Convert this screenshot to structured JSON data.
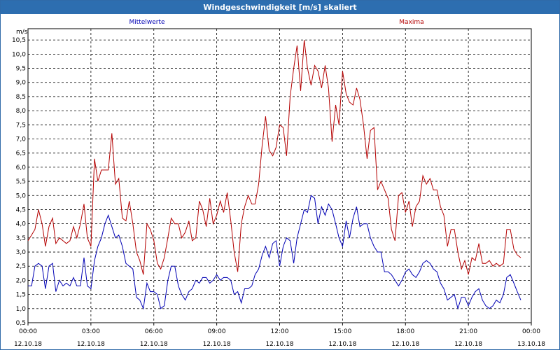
{
  "window": {
    "title": "Windgeschwindigkeit [m/s] skaliert"
  },
  "chart_data": {
    "type": "line",
    "ylabel": "m/s",
    "ylim": [
      0.5,
      10.9
    ],
    "yticks": [
      "0,5",
      "1,0",
      "1,5",
      "2,0",
      "2,5",
      "3,0",
      "3,5",
      "4,0",
      "4,5",
      "5,0",
      "5,5",
      "6,0",
      "6,5",
      "7,0",
      "7,5",
      "8,0",
      "8,5",
      "9,0",
      "9,5",
      "10,0",
      "10,5"
    ],
    "xticks": [
      {
        "time": "00:00",
        "date": "12.10.18"
      },
      {
        "time": "03:00",
        "date": "12.10.18"
      },
      {
        "time": "06:00",
        "date": "12.10.18"
      },
      {
        "time": "09:00",
        "date": "12.10.18"
      },
      {
        "time": "12:00",
        "date": "12.10.18"
      },
      {
        "time": "15:00",
        "date": "12.10.18"
      },
      {
        "time": "18:00",
        "date": "12.10.18"
      },
      {
        "time": "21:00",
        "date": "12.10.18"
      },
      {
        "time": "00:00",
        "date": "13.10.18"
      }
    ],
    "grid": true,
    "series": [
      {
        "name": "Mittelwerte",
        "color": "#0000b4",
        "points": [
          [
            0.0,
            1.8
          ],
          [
            0.17,
            1.8
          ],
          [
            0.33,
            2.5
          ],
          [
            0.5,
            2.6
          ],
          [
            0.67,
            2.5
          ],
          [
            0.83,
            1.7
          ],
          [
            1.0,
            2.5
          ],
          [
            1.17,
            2.6
          ],
          [
            1.33,
            1.6
          ],
          [
            1.5,
            2.0
          ],
          [
            1.67,
            1.8
          ],
          [
            1.83,
            1.9
          ],
          [
            2.0,
            1.8
          ],
          [
            2.17,
            2.1
          ],
          [
            2.33,
            1.8
          ],
          [
            2.5,
            1.8
          ],
          [
            2.67,
            2.8
          ],
          [
            2.83,
            1.8
          ],
          [
            3.0,
            1.7
          ],
          [
            3.17,
            2.7
          ],
          [
            3.33,
            3.2
          ],
          [
            3.5,
            3.5
          ],
          [
            3.67,
            4.0
          ],
          [
            3.83,
            4.3
          ],
          [
            4.0,
            3.9
          ],
          [
            4.17,
            3.5
          ],
          [
            4.33,
            3.6
          ],
          [
            4.5,
            3.2
          ],
          [
            4.67,
            2.6
          ],
          [
            4.83,
            2.5
          ],
          [
            5.0,
            2.4
          ],
          [
            5.17,
            1.4
          ],
          [
            5.33,
            1.3
          ],
          [
            5.5,
            1.0
          ],
          [
            5.67,
            1.9
          ],
          [
            5.83,
            1.6
          ],
          [
            6.0,
            1.6
          ],
          [
            6.17,
            1.5
          ],
          [
            6.33,
            1.0
          ],
          [
            6.5,
            1.1
          ],
          [
            6.67,
            2.0
          ],
          [
            6.83,
            2.5
          ],
          [
            7.0,
            2.5
          ],
          [
            7.17,
            1.8
          ],
          [
            7.33,
            1.5
          ],
          [
            7.5,
            1.3
          ],
          [
            7.67,
            1.6
          ],
          [
            7.83,
            1.7
          ],
          [
            8.0,
            2.0
          ],
          [
            8.17,
            1.9
          ],
          [
            8.33,
            2.1
          ],
          [
            8.5,
            2.1
          ],
          [
            8.67,
            1.9
          ],
          [
            8.83,
            2.0
          ],
          [
            9.0,
            2.2
          ],
          [
            9.17,
            2.0
          ],
          [
            9.33,
            2.1
          ],
          [
            9.5,
            2.1
          ],
          [
            9.67,
            2.0
          ],
          [
            9.83,
            1.5
          ],
          [
            10.0,
            1.6
          ],
          [
            10.17,
            1.2
          ],
          [
            10.33,
            1.7
          ],
          [
            10.5,
            1.7
          ],
          [
            10.67,
            1.8
          ],
          [
            10.83,
            2.2
          ],
          [
            11.0,
            2.4
          ],
          [
            11.17,
            2.9
          ],
          [
            11.33,
            3.2
          ],
          [
            11.5,
            2.8
          ],
          [
            11.67,
            3.3
          ],
          [
            11.83,
            3.4
          ],
          [
            12.0,
            2.5
          ],
          [
            12.17,
            3.2
          ],
          [
            12.33,
            3.5
          ],
          [
            12.5,
            3.4
          ],
          [
            12.67,
            2.6
          ],
          [
            12.83,
            3.5
          ],
          [
            13.0,
            4.0
          ],
          [
            13.17,
            4.5
          ],
          [
            13.33,
            4.4
          ],
          [
            13.5,
            5.0
          ],
          [
            13.67,
            4.9
          ],
          [
            13.83,
            4.0
          ],
          [
            14.0,
            4.6
          ],
          [
            14.17,
            4.3
          ],
          [
            14.33,
            4.7
          ],
          [
            14.5,
            4.5
          ],
          [
            14.67,
            4.0
          ],
          [
            14.83,
            3.5
          ],
          [
            15.0,
            3.2
          ],
          [
            15.17,
            4.1
          ],
          [
            15.33,
            3.5
          ],
          [
            15.5,
            4.2
          ],
          [
            15.67,
            4.6
          ],
          [
            15.83,
            3.9
          ],
          [
            16.0,
            4.0
          ],
          [
            16.17,
            4.0
          ],
          [
            16.33,
            3.5
          ],
          [
            16.5,
            3.2
          ],
          [
            16.67,
            3.0
          ],
          [
            16.83,
            3.0
          ],
          [
            17.0,
            2.3
          ],
          [
            17.17,
            2.3
          ],
          [
            17.33,
            2.2
          ],
          [
            17.5,
            2.0
          ],
          [
            17.67,
            1.8
          ],
          [
            17.83,
            2.0
          ],
          [
            18.0,
            2.3
          ],
          [
            18.17,
            2.4
          ],
          [
            18.33,
            2.2
          ],
          [
            18.5,
            2.1
          ],
          [
            18.67,
            2.3
          ],
          [
            18.83,
            2.6
          ],
          [
            19.0,
            2.7
          ],
          [
            19.17,
            2.6
          ],
          [
            19.33,
            2.4
          ],
          [
            19.5,
            2.3
          ],
          [
            19.67,
            1.9
          ],
          [
            19.83,
            1.7
          ],
          [
            20.0,
            1.3
          ],
          [
            20.17,
            1.4
          ],
          [
            20.33,
            1.5
          ],
          [
            20.5,
            1.0
          ],
          [
            20.67,
            1.4
          ],
          [
            20.83,
            1.4
          ],
          [
            21.0,
            1.1
          ],
          [
            21.17,
            1.4
          ],
          [
            21.33,
            1.6
          ],
          [
            21.5,
            1.7
          ],
          [
            21.67,
            1.3
          ],
          [
            21.83,
            1.1
          ],
          [
            22.0,
            1.0
          ],
          [
            22.17,
            1.1
          ],
          [
            22.33,
            1.3
          ],
          [
            22.5,
            1.2
          ],
          [
            22.67,
            1.5
          ],
          [
            22.83,
            2.1
          ],
          [
            23.0,
            2.2
          ],
          [
            23.17,
            1.9
          ],
          [
            23.33,
            1.6
          ],
          [
            23.5,
            1.3
          ]
        ]
      },
      {
        "name": "Maxima",
        "color": "#b40000",
        "points": [
          [
            0.0,
            3.4
          ],
          [
            0.17,
            3.6
          ],
          [
            0.33,
            3.8
          ],
          [
            0.5,
            4.5
          ],
          [
            0.67,
            4.0
          ],
          [
            0.83,
            3.2
          ],
          [
            1.0,
            3.9
          ],
          [
            1.17,
            4.2
          ],
          [
            1.33,
            3.3
          ],
          [
            1.5,
            3.5
          ],
          [
            1.67,
            3.4
          ],
          [
            1.83,
            3.3
          ],
          [
            2.0,
            3.4
          ],
          [
            2.17,
            3.9
          ],
          [
            2.33,
            3.5
          ],
          [
            2.5,
            4.0
          ],
          [
            2.67,
            4.7
          ],
          [
            2.83,
            3.5
          ],
          [
            3.0,
            3.2
          ],
          [
            3.17,
            6.3
          ],
          [
            3.33,
            5.5
          ],
          [
            3.5,
            5.9
          ],
          [
            3.67,
            5.9
          ],
          [
            3.83,
            5.9
          ],
          [
            4.0,
            7.2
          ],
          [
            4.17,
            5.4
          ],
          [
            4.33,
            5.6
          ],
          [
            4.5,
            4.2
          ],
          [
            4.67,
            4.1
          ],
          [
            4.83,
            4.8
          ],
          [
            5.0,
            4.0
          ],
          [
            5.17,
            3.0
          ],
          [
            5.33,
            2.7
          ],
          [
            5.5,
            2.2
          ],
          [
            5.67,
            4.0
          ],
          [
            5.83,
            3.8
          ],
          [
            6.0,
            3.4
          ],
          [
            6.17,
            2.6
          ],
          [
            6.33,
            2.4
          ],
          [
            6.5,
            2.8
          ],
          [
            6.67,
            3.5
          ],
          [
            6.83,
            4.2
          ],
          [
            7.0,
            4.0
          ],
          [
            7.17,
            4.0
          ],
          [
            7.33,
            3.5
          ],
          [
            7.5,
            3.7
          ],
          [
            7.67,
            4.1
          ],
          [
            7.83,
            3.4
          ],
          [
            8.0,
            3.5
          ],
          [
            8.17,
            4.8
          ],
          [
            8.33,
            4.5
          ],
          [
            8.5,
            3.9
          ],
          [
            8.67,
            4.9
          ],
          [
            8.83,
            4.0
          ],
          [
            9.0,
            4.3
          ],
          [
            9.17,
            4.8
          ],
          [
            9.33,
            4.4
          ],
          [
            9.5,
            5.1
          ],
          [
            9.67,
            4.1
          ],
          [
            9.83,
            3.0
          ],
          [
            10.0,
            2.3
          ],
          [
            10.17,
            4.0
          ],
          [
            10.33,
            4.6
          ],
          [
            10.5,
            5.0
          ],
          [
            10.67,
            4.7
          ],
          [
            10.83,
            4.7
          ],
          [
            11.0,
            5.4
          ],
          [
            11.17,
            6.8
          ],
          [
            11.33,
            7.8
          ],
          [
            11.5,
            6.6
          ],
          [
            11.67,
            6.4
          ],
          [
            11.83,
            6.7
          ],
          [
            12.0,
            7.5
          ],
          [
            12.17,
            7.4
          ],
          [
            12.33,
            6.4
          ],
          [
            12.5,
            8.5
          ],
          [
            12.67,
            9.5
          ],
          [
            12.83,
            10.3
          ],
          [
            13.0,
            8.7
          ],
          [
            13.17,
            10.5
          ],
          [
            13.33,
            9.5
          ],
          [
            13.5,
            8.9
          ],
          [
            13.67,
            9.6
          ],
          [
            13.83,
            9.4
          ],
          [
            14.0,
            8.8
          ],
          [
            14.17,
            9.6
          ],
          [
            14.33,
            8.8
          ],
          [
            14.5,
            6.9
          ],
          [
            14.67,
            8.2
          ],
          [
            14.83,
            7.5
          ],
          [
            15.0,
            9.4
          ],
          [
            15.17,
            8.6
          ],
          [
            15.33,
            8.3
          ],
          [
            15.5,
            8.2
          ],
          [
            15.67,
            8.8
          ],
          [
            15.83,
            8.4
          ],
          [
            16.0,
            7.5
          ],
          [
            16.17,
            6.3
          ],
          [
            16.33,
            7.3
          ],
          [
            16.5,
            7.4
          ],
          [
            16.67,
            5.2
          ],
          [
            16.83,
            5.5
          ],
          [
            17.0,
            5.2
          ],
          [
            17.17,
            4.9
          ],
          [
            17.33,
            3.8
          ],
          [
            17.5,
            3.4
          ],
          [
            17.67,
            5.0
          ],
          [
            17.83,
            5.1
          ],
          [
            18.0,
            4.4
          ],
          [
            18.17,
            4.8
          ],
          [
            18.33,
            3.9
          ],
          [
            18.5,
            4.6
          ],
          [
            18.67,
            4.8
          ],
          [
            18.83,
            5.7
          ],
          [
            19.0,
            5.4
          ],
          [
            19.17,
            5.6
          ],
          [
            19.33,
            5.2
          ],
          [
            19.5,
            5.2
          ],
          [
            19.67,
            4.6
          ],
          [
            19.83,
            4.3
          ],
          [
            20.0,
            3.2
          ],
          [
            20.17,
            3.8
          ],
          [
            20.33,
            3.8
          ],
          [
            20.5,
            3.0
          ],
          [
            20.67,
            2.4
          ],
          [
            20.83,
            2.7
          ],
          [
            21.0,
            2.2
          ],
          [
            21.17,
            2.8
          ],
          [
            21.33,
            2.7
          ],
          [
            21.5,
            3.3
          ],
          [
            21.67,
            2.6
          ],
          [
            21.83,
            2.6
          ],
          [
            22.0,
            2.7
          ],
          [
            22.17,
            2.5
          ],
          [
            22.33,
            2.6
          ],
          [
            22.5,
            2.5
          ],
          [
            22.67,
            2.6
          ],
          [
            22.83,
            3.8
          ],
          [
            23.0,
            3.8
          ],
          [
            23.17,
            3.1
          ],
          [
            23.33,
            2.9
          ],
          [
            23.5,
            2.8
          ]
        ]
      }
    ]
  }
}
